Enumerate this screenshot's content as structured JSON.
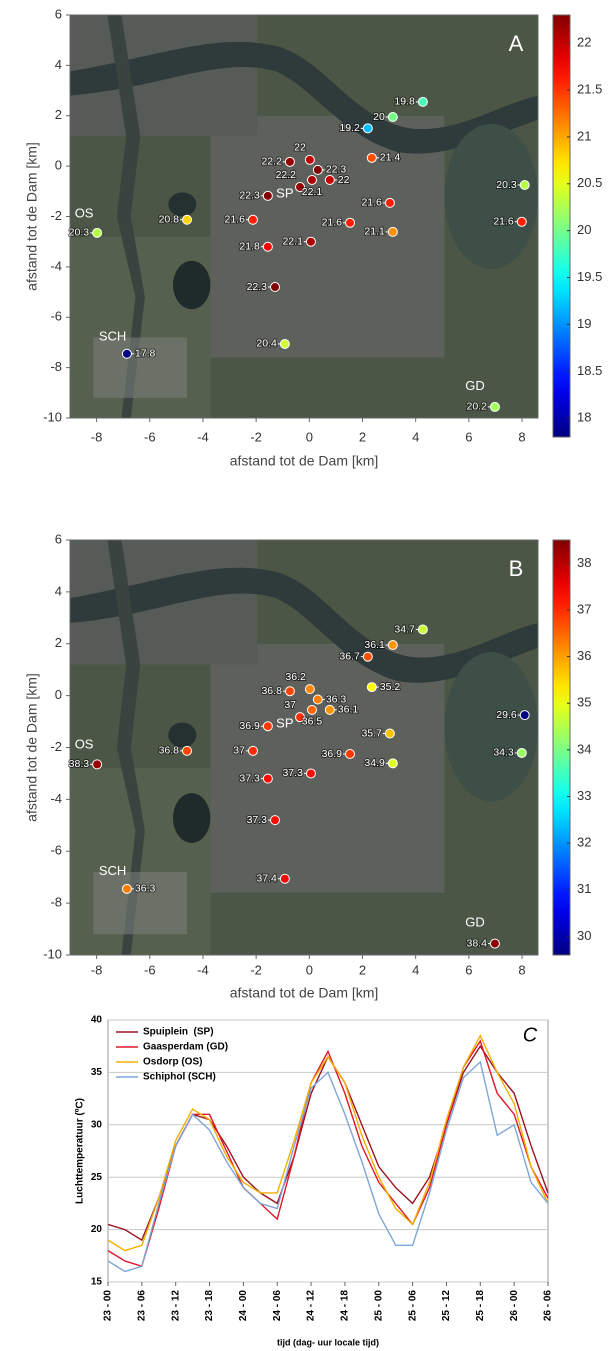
{
  "chart_data": [
    {
      "type": "scatter",
      "panel_label": "A",
      "xlabel": "afstand tot de Dam [km]",
      "ylabel": "afstand tot de Dam [km]",
      "xlim": [
        -9,
        8.6
      ],
      "ylim": [
        -10,
        6
      ],
      "xticks": [
        -8,
        -6,
        -4,
        -2,
        0,
        2,
        4,
        6,
        8
      ],
      "yticks": [
        -10,
        -8,
        -6,
        -4,
        -2,
        0,
        2,
        4,
        6
      ],
      "x": [
        4.27,
        3.14,
        2.2,
        0.02,
        2.35,
        -0.73,
        0.32,
        -0.35,
        0.77,
        0.1,
        -1.56,
        8.1,
        3.03,
        1.53,
        3.14,
        7.99,
        -4.6,
        -7.98,
        -2.12,
        -1.56,
        0.06,
        -1.29,
        -0.92,
        -6.86,
        6.98
      ],
      "y": [
        2.55,
        1.95,
        1.5,
        0.25,
        0.33,
        0.17,
        -0.15,
        -0.83,
        -0.55,
        -0.55,
        -1.18,
        -0.75,
        -1.46,
        -2.25,
        -2.61,
        -2.21,
        -2.13,
        -2.65,
        -2.13,
        -3.2,
        -3.0,
        -4.8,
        -7.06,
        -7.45,
        -9.56
      ],
      "values": [
        19.8,
        20,
        19.2,
        22,
        21.4,
        22.2,
        22.3,
        22.2,
        22,
        22.1,
        22.3,
        20.3,
        21.6,
        21.6,
        21.1,
        21.6,
        20.8,
        20.3,
        21.6,
        21.8,
        22.1,
        22.3,
        20.4,
        17.8,
        20.2
      ],
      "colormap": "jet",
      "clim": [
        17.8,
        22.3
      ],
      "cticks": [
        18,
        18.5,
        19,
        19.5,
        20,
        20.5,
        21,
        21.5,
        22
      ],
      "grid": false,
      "annotations": [
        {
          "text": "SP",
          "x": -0.92,
          "y": -1.1
        },
        {
          "text": "OS",
          "x": -8.47,
          "y": -1.9
        },
        {
          "text": "SCH",
          "x": -7.4,
          "y": -6.78
        },
        {
          "text": "GD",
          "x": 6.23,
          "y": -8.76
        }
      ]
    },
    {
      "type": "scatter",
      "panel_label": "B",
      "xlabel": "afstand tot de Dam [km]",
      "ylabel": "afstand tot de Dam [km]",
      "xlim": [
        -9,
        8.6
      ],
      "ylim": [
        -10,
        6
      ],
      "xticks": [
        -8,
        -6,
        -4,
        -2,
        0,
        2,
        4,
        6,
        8
      ],
      "yticks": [
        -10,
        -8,
        -6,
        -4,
        -2,
        0,
        2,
        4,
        6
      ],
      "x": [
        4.27,
        3.14,
        2.2,
        0.02,
        2.35,
        -0.73,
        0.32,
        -0.35,
        0.77,
        0.1,
        -1.56,
        8.1,
        3.03,
        1.53,
        3.14,
        7.99,
        -4.6,
        -7.98,
        -2.12,
        -1.56,
        0.06,
        -1.29,
        -0.92,
        -6.86,
        6.98
      ],
      "y": [
        2.55,
        1.95,
        1.5,
        0.25,
        0.33,
        0.17,
        -0.15,
        -0.83,
        -0.55,
        -0.55,
        -1.18,
        -0.75,
        -1.46,
        -2.25,
        -2.61,
        -2.21,
        -2.13,
        -2.65,
        -2.13,
        -3.2,
        -3.0,
        -4.8,
        -7.06,
        -7.45,
        -9.56
      ],
      "values": [
        34.7,
        36.1,
        36.7,
        36.2,
        35.2,
        36.8,
        36.3,
        37,
        36.1,
        36.5,
        36.9,
        29.6,
        35.7,
        36.9,
        34.9,
        34.3,
        36.8,
        38.3,
        37,
        37.3,
        37.3,
        37.3,
        37.4,
        36.3,
        38.4
      ],
      "colormap": "jet",
      "clim": [
        29.6,
        38.5
      ],
      "cticks": [
        30,
        31,
        32,
        33,
        34,
        35,
        36,
        37,
        38
      ],
      "grid": false,
      "annotations": [
        {
          "text": "SP",
          "x": -0.92,
          "y": -1.1
        },
        {
          "text": "OS",
          "x": -8.47,
          "y": -1.9
        },
        {
          "text": "SCH",
          "x": -7.4,
          "y": -6.78
        },
        {
          "text": "GD",
          "x": 6.23,
          "y": -8.76
        }
      ]
    },
    {
      "type": "line",
      "panel_label": "C",
      "xlabel": "tijd (dag- uur locale tijd)",
      "ylabel": "Luchttemperatuur (ºC)",
      "x": [
        0,
        3,
        6,
        9,
        12,
        15,
        18,
        21,
        24,
        27,
        30,
        33,
        36,
        39,
        42,
        45,
        48,
        51,
        54,
        57,
        60,
        63,
        66,
        69,
        72,
        75,
        78
      ],
      "xlim": [
        0,
        78
      ],
      "ylim": [
        15,
        40
      ],
      "yticks": [
        15,
        20,
        25,
        30,
        35,
        40
      ],
      "grid": true,
      "legend": "upper left",
      "xticks": [
        {
          "value": 0,
          "label": "23 - 00"
        },
        {
          "value": 6,
          "label": "23 - 06"
        },
        {
          "value": 12,
          "label": "23 - 12"
        },
        {
          "value": 18,
          "label": "23 - 18"
        },
        {
          "value": 24,
          "label": "24 - 00"
        },
        {
          "value": 30,
          "label": "24 - 06"
        },
        {
          "value": 36,
          "label": "24 - 12"
        },
        {
          "value": 42,
          "label": "24 - 18"
        },
        {
          "value": 48,
          "label": "25 - 00"
        },
        {
          "value": 54,
          "label": "25 - 06"
        },
        {
          "value": 60,
          "label": "25 - 12"
        },
        {
          "value": 66,
          "label": "25 - 18"
        },
        {
          "value": 72,
          "label": "26 - 00"
        },
        {
          "value": 78,
          "label": "26 - 06"
        }
      ],
      "series": [
        {
          "name": "Spuiplein  (SP)",
          "color": "#9b1422",
          "values": [
            20.5,
            20,
            19,
            23,
            28,
            31,
            30.5,
            28,
            25,
            23.5,
            22.5,
            27,
            33,
            36.5,
            34,
            30,
            26,
            24,
            22.5,
            25,
            30,
            35,
            37.5,
            35,
            33,
            28,
            23.5
          ]
        },
        {
          "name": "Gaasperdam (GD)",
          "color": "#e2172b",
          "values": [
            18,
            17,
            16.5,
            22,
            28,
            31,
            31,
            27.5,
            24,
            22.5,
            21,
            27,
            34,
            37,
            33,
            28,
            24.5,
            22.5,
            20.5,
            24,
            30,
            35.5,
            38,
            33,
            31,
            26,
            23
          ]
        },
        {
          "name": "Osdorp (OS)",
          "color": "#f3b000",
          "values": [
            19,
            18,
            18.5,
            23,
            28.5,
            31.5,
            30.5,
            27,
            24.5,
            23.5,
            23.5,
            28.5,
            34,
            36.5,
            34,
            29,
            25,
            22,
            20.5,
            24.5,
            30.5,
            35.5,
            38.5,
            35,
            32,
            26,
            22.5
          ]
        },
        {
          "name": "Schiphol (SCH)",
          "color": "#7ea6d8",
          "values": [
            17,
            16,
            16.5,
            22.5,
            28,
            31,
            29.5,
            26.5,
            24,
            22.5,
            22,
            28,
            33.5,
            35,
            31,
            26.5,
            21.5,
            18.5,
            18.5,
            23.5,
            29.5,
            34.5,
            36,
            29,
            30,
            24.5,
            22.5
          ]
        }
      ]
    }
  ]
}
